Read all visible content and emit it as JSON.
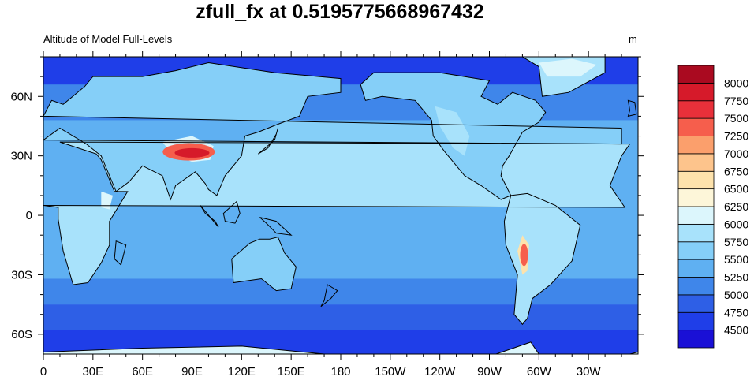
{
  "title": "zfull_fx at 0.5195775668967432",
  "left_subtitle": "Altitude of Model Full-Levels",
  "units": "m",
  "x_ticks": [
    "0",
    "30E",
    "60E",
    "90E",
    "120E",
    "150E",
    "180",
    "150W",
    "120W",
    "90W",
    "60W",
    "30W"
  ],
  "y_ticks": [
    "60N",
    "30N",
    "0",
    "30S",
    "60S"
  ],
  "colorbar": {
    "labels": [
      "4500",
      "4750",
      "5000",
      "5250",
      "5500",
      "5750",
      "6000",
      "6250",
      "6500",
      "6750",
      "7000",
      "7250",
      "7500",
      "7750",
      "8000"
    ],
    "colors": [
      "#1a10d6",
      "#1f3ee8",
      "#2e5fe6",
      "#3f86ea",
      "#5fb0f2",
      "#85cff8",
      "#a8e2fb",
      "#dcf6fc",
      "#fdf6d9",
      "#fde2ac",
      "#fdc48c",
      "#fb9f6c",
      "#f65e4c",
      "#e8303a",
      "#d61a2a",
      "#aa0a20"
    ]
  },
  "map_colors": {
    "ocean_polar": "#1f3ee8",
    "ocean_south": "#2e5fe6",
    "ocean_mid": "#3f86ea",
    "ocean_tropic": "#5fb0f2",
    "land_low": "#85cff8",
    "land_mid": "#a8e2fb",
    "land_high": "#dcf6fc",
    "land_plateau": "#fde2ac",
    "peak_high": "#f65e4c",
    "peak_top": "#d61a2a",
    "coast": "#000000"
  }
}
